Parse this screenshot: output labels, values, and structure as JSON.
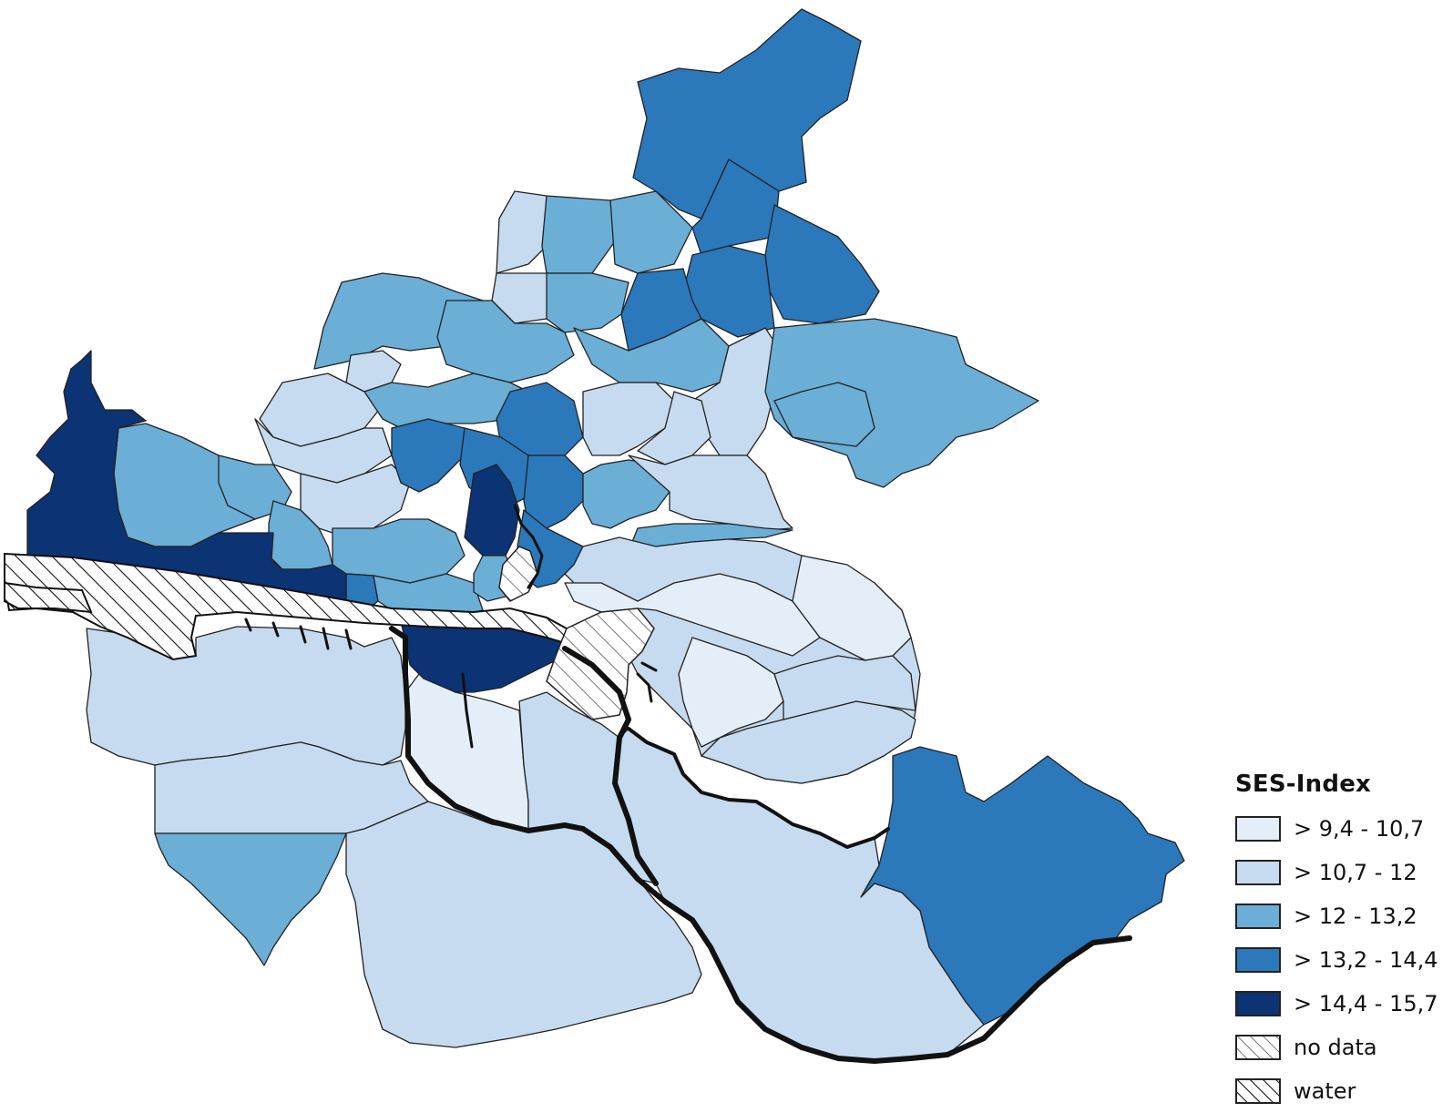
{
  "legend": {
    "title": "SES-Index",
    "items": [
      {
        "label": "> 9,4 - 10,7",
        "color": "#e3eef9",
        "pattern": "none",
        "class": 1
      },
      {
        "label": "> 10,7 - 12",
        "color": "#c6dbef",
        "pattern": "none",
        "class": 2
      },
      {
        "label": "> 12 - 13,2",
        "color": "#6baed6",
        "pattern": "none",
        "class": 3
      },
      {
        "label": "> 13,2 - 14,4",
        "color": "#2b78bb",
        "pattern": "none",
        "class": 4
      },
      {
        "label": "> 14,4 - 15,7",
        "color": "#0c3373",
        "pattern": "none",
        "class": 5
      },
      {
        "label": "no data",
        "color": "#ffffff",
        "pattern": "hatch-grey",
        "class": 0
      },
      {
        "label": "water",
        "color": "#ffffff",
        "pattern": "hatch-black",
        "class": -1
      }
    ]
  },
  "colors": {
    "class1": "#e3eef9",
    "class2": "#c6dbef",
    "class3": "#6baed6",
    "class4": "#2b78bb",
    "class5": "#0c3373",
    "boundary": "#222222",
    "background": "#ffffff"
  }
}
